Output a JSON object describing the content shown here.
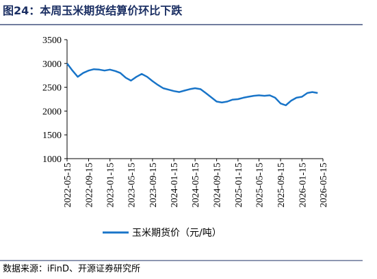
{
  "title": "图24：本周玉米期货结算价环比下跌",
  "source": "数据来源：iFinD、开源证券研究所",
  "chart_data": {
    "type": "line",
    "x": [
      "2022-05-15",
      "2022-06-15",
      "2022-07-15",
      "2022-08-15",
      "2022-09-15",
      "2022-10-15",
      "2022-11-15",
      "2022-12-15",
      "2023-01-15",
      "2023-02-15",
      "2023-03-15",
      "2023-04-15",
      "2023-05-15",
      "2023-06-15",
      "2023-07-15",
      "2023-08-15",
      "2023-09-15",
      "2023-10-15",
      "2023-11-15",
      "2023-12-15",
      "2024-01-15",
      "2024-02-15",
      "2024-03-15",
      "2024-04-15",
      "2024-05-15",
      "2024-06-15",
      "2024-07-15",
      "2024-08-15",
      "2024-09-15",
      "2024-10-15",
      "2024-11-15",
      "2024-12-15",
      "2025-01-15",
      "2025-02-15",
      "2025-03-15",
      "2025-04-15",
      "2025-05-15",
      "2025-06-15",
      "2025-07-15",
      "2025-08-15",
      "2025-09-15",
      "2025-10-15",
      "2025-11-15",
      "2025-12-15",
      "2026-01-15",
      "2026-02-15",
      "2026-03-15",
      "2026-04-15"
    ],
    "series": [
      {
        "name": "玉米期货价（元/吨）",
        "color": "#1874c8",
        "values": [
          3000,
          2850,
          2720,
          2800,
          2850,
          2880,
          2870,
          2850,
          2870,
          2840,
          2800,
          2700,
          2640,
          2720,
          2780,
          2720,
          2630,
          2550,
          2480,
          2450,
          2420,
          2400,
          2430,
          2460,
          2480,
          2460,
          2380,
          2290,
          2200,
          2180,
          2200,
          2240,
          2250,
          2280,
          2300,
          2320,
          2330,
          2320,
          2330,
          2280,
          2160,
          2120,
          2220,
          2280,
          2300,
          2380,
          2400,
          2380
        ]
      }
    ],
    "xlim": [
      "2022-05-15",
      "2026-05-15"
    ],
    "xticks": [
      "2022-05-15",
      "2022-09-15",
      "2023-01-15",
      "2023-05-15",
      "2023-09-15",
      "2024-01-15",
      "2024-05-15",
      "2024-09-15",
      "2025-01-15",
      "2025-05-15",
      "2025-09-15",
      "2026-01-15",
      "2026-05-15"
    ],
    "ylim": [
      1000,
      3500
    ],
    "yticks": [
      1000,
      1500,
      2000,
      2500,
      3000,
      3500
    ]
  }
}
